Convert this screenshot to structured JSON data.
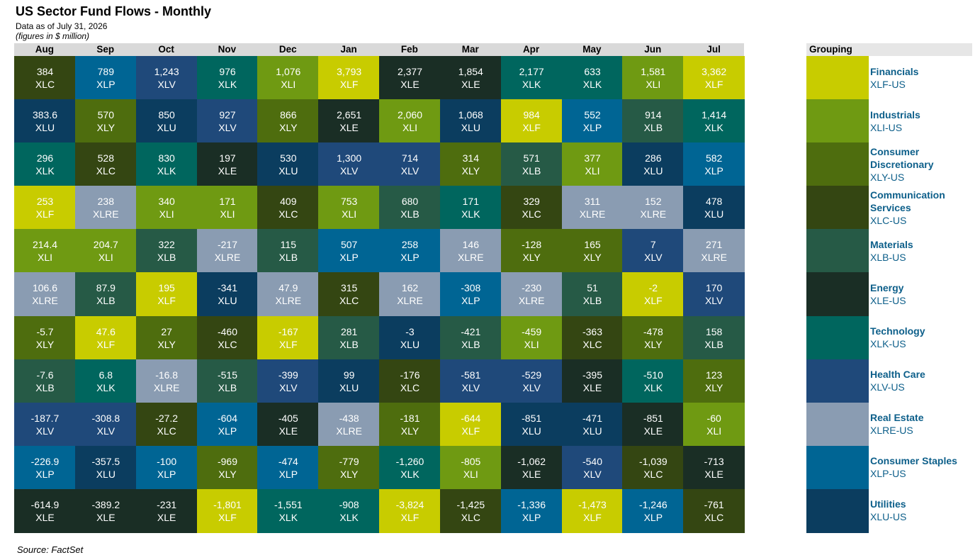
{
  "header": {
    "title": "US Sector Fund Flows - Monthly",
    "subtitle": "Data as of July 31, 2026",
    "units": "(figures in $ million)"
  },
  "legend": {
    "title": "Grouping",
    "items": [
      {
        "ticker": "XLF",
        "name": "Financials",
        "label": "XLF-US",
        "color": "#c8cc00",
        "fg": "#ffffff"
      },
      {
        "ticker": "XLI",
        "name": "Industrials",
        "label": "XLI-US",
        "color": "#6f9a12",
        "fg": "#ffffff"
      },
      {
        "ticker": "XLY",
        "name": "Consumer Discretionary",
        "label": "XLY-US",
        "color": "#4e6d0e",
        "fg": "#ffffff"
      },
      {
        "ticker": "XLC",
        "name": "Communication Services",
        "label": "XLC-US",
        "color": "#344612",
        "fg": "#ffffff"
      },
      {
        "ticker": "XLB",
        "name": "Materials",
        "label": "XLB-US",
        "color": "#265a46",
        "fg": "#ffffff"
      },
      {
        "ticker": "XLE",
        "name": "Energy",
        "label": "XLE-US",
        "color": "#1a2e25",
        "fg": "#ffffff"
      },
      {
        "ticker": "XLK",
        "name": "Technology",
        "label": "XLK-US",
        "color": "#00665e",
        "fg": "#ffffff"
      },
      {
        "ticker": "XLV",
        "name": "Health Care",
        "label": "XLV-US",
        "color": "#1f497a",
        "fg": "#ffffff"
      },
      {
        "ticker": "XLRE",
        "name": "Real Estate",
        "label": "XLRE-US",
        "color": "#8a9cb2",
        "fg": "#ffffff"
      },
      {
        "ticker": "XLP",
        "name": "Consumer Staples",
        "label": "XLP-US",
        "color": "#006594",
        "fg": "#ffffff"
      },
      {
        "ticker": "XLU",
        "name": "Utilities",
        "label": "XLU-US",
        "color": "#0b3d5f",
        "fg": "#ffffff"
      }
    ]
  },
  "chart_data": {
    "type": "table",
    "title": "US Sector Fund Flows - Monthly",
    "subtitle": "Data as of July 31, 2026",
    "units": "(figures in $ million)",
    "source": "Source: FactSet",
    "legend_position": "right",
    "months": [
      "Aug",
      "Sep",
      "Oct",
      "Nov",
      "Dec",
      "Jan",
      "Feb",
      "Mar",
      "Apr",
      "May",
      "Jun",
      "Jul"
    ],
    "columns": [
      [
        [
          "384",
          "XLC"
        ],
        [
          "383.6",
          "XLU"
        ],
        [
          "296",
          "XLK"
        ],
        [
          "253",
          "XLF"
        ],
        [
          "214.4",
          "XLI"
        ],
        [
          "106.6",
          "XLRE"
        ],
        [
          "-5.7",
          "XLY"
        ],
        [
          "-7.6",
          "XLB"
        ],
        [
          "-187.7",
          "XLV"
        ],
        [
          "-226.9",
          "XLP"
        ],
        [
          "-614.9",
          "XLE"
        ]
      ],
      [
        [
          "789",
          "XLP"
        ],
        [
          "570",
          "XLY"
        ],
        [
          "528",
          "XLC"
        ],
        [
          "238",
          "XLRE"
        ],
        [
          "204.7",
          "XLI"
        ],
        [
          "87.9",
          "XLB"
        ],
        [
          "47.6",
          "XLF"
        ],
        [
          "6.8",
          "XLK"
        ],
        [
          "-308.8",
          "XLV"
        ],
        [
          "-357.5",
          "XLU"
        ],
        [
          "-389.2",
          "XLE"
        ]
      ],
      [
        [
          "1,243",
          "XLV"
        ],
        [
          "850",
          "XLU"
        ],
        [
          "830",
          "XLK"
        ],
        [
          "340",
          "XLI"
        ],
        [
          "322",
          "XLB"
        ],
        [
          "195",
          "XLF"
        ],
        [
          "27",
          "XLY"
        ],
        [
          "-16.8",
          "XLRE"
        ],
        [
          "-27.2",
          "XLC"
        ],
        [
          "-100",
          "XLP"
        ],
        [
          "-231",
          "XLE"
        ]
      ],
      [
        [
          "976",
          "XLK"
        ],
        [
          "927",
          "XLV"
        ],
        [
          "197",
          "XLE"
        ],
        [
          "171",
          "XLI"
        ],
        [
          "-217",
          "XLRE"
        ],
        [
          "-341",
          "XLU"
        ],
        [
          "-460",
          "XLC"
        ],
        [
          "-515",
          "XLB"
        ],
        [
          "-604",
          "XLP"
        ],
        [
          "-969",
          "XLY"
        ],
        [
          "-1,801",
          "XLF"
        ]
      ],
      [
        [
          "1,076",
          "XLI"
        ],
        [
          "866",
          "XLY"
        ],
        [
          "530",
          "XLU"
        ],
        [
          "409",
          "XLC"
        ],
        [
          "115",
          "XLB"
        ],
        [
          "47.9",
          "XLRE"
        ],
        [
          "-167",
          "XLF"
        ],
        [
          "-399",
          "XLV"
        ],
        [
          "-405",
          "XLE"
        ],
        [
          "-474",
          "XLP"
        ],
        [
          "-1,551",
          "XLK"
        ]
      ],
      [
        [
          "3,793",
          "XLF"
        ],
        [
          "2,651",
          "XLE"
        ],
        [
          "1,300",
          "XLV"
        ],
        [
          "753",
          "XLI"
        ],
        [
          "507",
          "XLP"
        ],
        [
          "315",
          "XLC"
        ],
        [
          "281",
          "XLB"
        ],
        [
          "99",
          "XLU"
        ],
        [
          "-438",
          "XLRE"
        ],
        [
          "-779",
          "XLY"
        ],
        [
          "-908",
          "XLK"
        ]
      ],
      [
        [
          "2,377",
          "XLE"
        ],
        [
          "2,060",
          "XLI"
        ],
        [
          "714",
          "XLV"
        ],
        [
          "680",
          "XLB"
        ],
        [
          "258",
          "XLP"
        ],
        [
          "162",
          "XLRE"
        ],
        [
          "-3",
          "XLU"
        ],
        [
          "-176",
          "XLC"
        ],
        [
          "-181",
          "XLY"
        ],
        [
          "-1,260",
          "XLK"
        ],
        [
          "-3,824",
          "XLF"
        ]
      ],
      [
        [
          "1,854",
          "XLE"
        ],
        [
          "1,068",
          "XLU"
        ],
        [
          "314",
          "XLY"
        ],
        [
          "171",
          "XLK"
        ],
        [
          "146",
          "XLRE"
        ],
        [
          "-308",
          "XLP"
        ],
        [
          "-421",
          "XLB"
        ],
        [
          "-581",
          "XLV"
        ],
        [
          "-644",
          "XLF"
        ],
        [
          "-805",
          "XLI"
        ],
        [
          "-1,425",
          "XLC"
        ]
      ],
      [
        [
          "2,177",
          "XLK"
        ],
        [
          "984",
          "XLF"
        ],
        [
          "571",
          "XLB"
        ],
        [
          "329",
          "XLC"
        ],
        [
          "-128",
          "XLY"
        ],
        [
          "-230",
          "XLRE"
        ],
        [
          "-459",
          "XLI"
        ],
        [
          "-529",
          "XLV"
        ],
        [
          "-851",
          "XLU"
        ],
        [
          "-1,062",
          "XLE"
        ],
        [
          "-1,336",
          "XLP"
        ]
      ],
      [
        [
          "633",
          "XLK"
        ],
        [
          "552",
          "XLP"
        ],
        [
          "377",
          "XLI"
        ],
        [
          "311",
          "XLRE"
        ],
        [
          "165",
          "XLY"
        ],
        [
          "51",
          "XLB"
        ],
        [
          "-363",
          "XLC"
        ],
        [
          "-395",
          "XLE"
        ],
        [
          "-471",
          "XLU"
        ],
        [
          "-540",
          "XLV"
        ],
        [
          "-1,473",
          "XLF"
        ]
      ],
      [
        [
          "1,581",
          "XLI"
        ],
        [
          "914",
          "XLB"
        ],
        [
          "286",
          "XLU"
        ],
        [
          "152",
          "XLRE"
        ],
        [
          "7",
          "XLV"
        ],
        [
          "-2",
          "XLF"
        ],
        [
          "-478",
          "XLY"
        ],
        [
          "-510",
          "XLK"
        ],
        [
          "-851",
          "XLE"
        ],
        [
          "-1,039",
          "XLC"
        ],
        [
          "-1,246",
          "XLP"
        ]
      ],
      [
        [
          "3,362",
          "XLF"
        ],
        [
          "1,414",
          "XLK"
        ],
        [
          "582",
          "XLP"
        ],
        [
          "478",
          "XLU"
        ],
        [
          "271",
          "XLRE"
        ],
        [
          "170",
          "XLV"
        ],
        [
          "158",
          "XLB"
        ],
        [
          "123",
          "XLY"
        ],
        [
          "-60",
          "XLI"
        ],
        [
          "-713",
          "XLE"
        ],
        [
          "-761",
          "XLC"
        ]
      ]
    ]
  }
}
